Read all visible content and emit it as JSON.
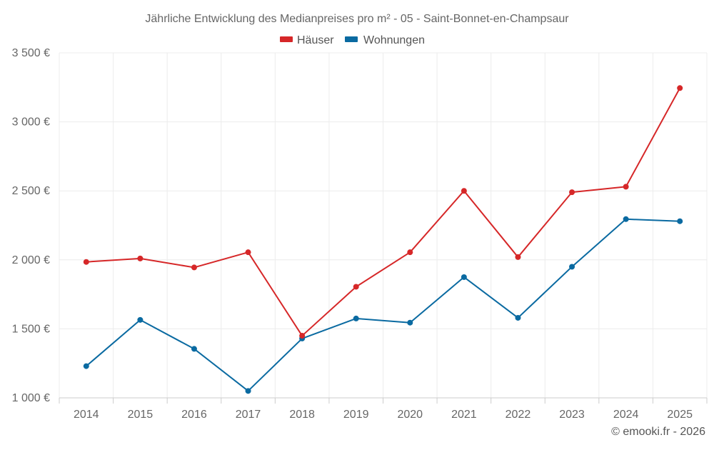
{
  "chart_data": {
    "type": "line",
    "title": "Jährliche Entwicklung des Medianpreises pro m² - 05 - Saint-Bonnet-en-Champsaur",
    "xlabel": "",
    "ylabel": "",
    "categories": [
      "2014",
      "2015",
      "2016",
      "2017",
      "2018",
      "2019",
      "2020",
      "2021",
      "2022",
      "2023",
      "2024",
      "2025"
    ],
    "ylim": [
      1000,
      3500
    ],
    "yticks": [
      1000,
      1500,
      2000,
      2500,
      3000,
      3500
    ],
    "ytick_labels": [
      "1 000 €",
      "1 500 €",
      "2 000 €",
      "2 500 €",
      "3 000 €",
      "3 500 €"
    ],
    "grid": true,
    "legend_position": "top-center",
    "series": [
      {
        "name": "Häuser",
        "color": "#d62728",
        "values": [
          1985,
          2010,
          1945,
          2055,
          1450,
          1805,
          2055,
          2500,
          2020,
          2490,
          2530,
          3245
        ]
      },
      {
        "name": "Wohnungen",
        "color": "#0a6aa1",
        "values": [
          1230,
          1565,
          1355,
          1050,
          1430,
          1575,
          1545,
          1875,
          1580,
          1950,
          2295,
          2280
        ]
      }
    ]
  },
  "credit": "© emooki.fr - 2026"
}
